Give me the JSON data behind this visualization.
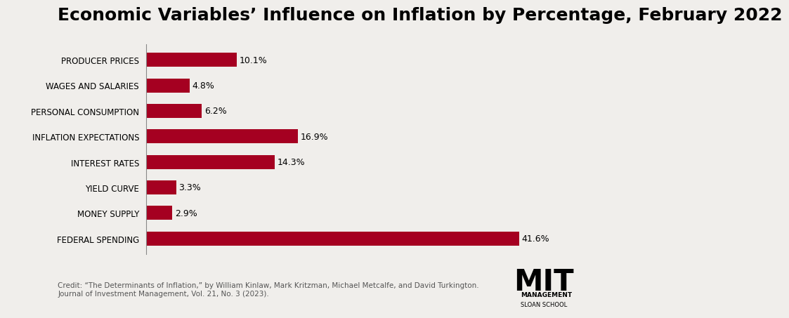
{
  "title": "Economic Variables’ Influence on Inflation by Percentage, February 2022",
  "categories": [
    "FEDERAL SPENDING",
    "MONEY SUPPLY",
    "YIELD CURVE",
    "INTEREST RATES",
    "INFLATION EXPECTATIONS",
    "PERSONAL CONSUMPTION",
    "WAGES AND SALARIES",
    "PRODUCER PRICES"
  ],
  "values": [
    41.6,
    2.9,
    3.3,
    14.3,
    16.9,
    6.2,
    4.8,
    10.1
  ],
  "bar_color": "#A50021",
  "background_color": "#F0EEEB",
  "title_fontsize": 18,
  "label_fontsize": 8.5,
  "value_fontsize": 9,
  "credit_text": "Credit: “The Determinants of Inflation,” by William Kinlaw, Mark Kritzman, Michael Metcalfe, and David Turkington.\nJournal of Investment Management, Vol. 21, No. 3 (2023).",
  "credit_fontsize": 7.5,
  "xlim": [
    0,
    46
  ],
  "mit_text": "MIT",
  "management_text": "MANAGEMENT",
  "sloan_text": "SLOAN SCHOOL"
}
